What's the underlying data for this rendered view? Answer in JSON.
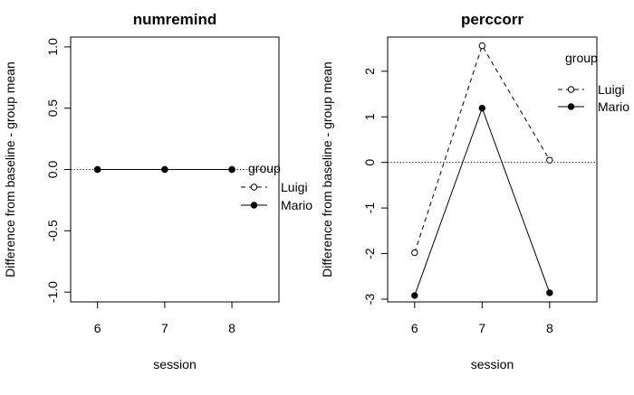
{
  "chart_data": [
    {
      "type": "line",
      "title": "numremind",
      "xlabel": "session",
      "ylabel": "Difference from baseline - group mean",
      "x": [
        6,
        7,
        8
      ],
      "xticks": [
        "6",
        "7",
        "8"
      ],
      "xlim": [
        5.6,
        8.7
      ],
      "ylim": [
        -1.08,
        1.08
      ],
      "yticks": [
        -1.0,
        -0.5,
        0.0,
        0.5,
        1.0
      ],
      "ytick_labels": [
        "-1.0",
        "-0.5",
        "0.0",
        "0.5",
        "1.0"
      ],
      "reference_line": 0,
      "legend": {
        "title": "group",
        "placement": "right"
      },
      "series": [
        {
          "name": "Luigi",
          "values": [
            0,
            0,
            0
          ],
          "linestyle": "dashed",
          "marker": "open-circle"
        },
        {
          "name": "Mario",
          "values": [
            0,
            0,
            0
          ],
          "linestyle": "solid",
          "marker": "filled-circle"
        }
      ]
    },
    {
      "type": "line",
      "title": "perccorr",
      "xlabel": "session",
      "ylabel": "Difference from baseline - group mean",
      "x": [
        6,
        7,
        8
      ],
      "xticks": [
        "6",
        "7",
        "8"
      ],
      "xlim": [
        5.6,
        8.7
      ],
      "ylim": [
        -3.06,
        2.75
      ],
      "yticks": [
        -3,
        -2,
        -1,
        0,
        1,
        2
      ],
      "ytick_labels": [
        "-3",
        "-2",
        "-1",
        "0",
        "1",
        "2"
      ],
      "reference_line": 0,
      "legend": {
        "title": "group",
        "placement": "top-right"
      },
      "series": [
        {
          "name": "Luigi",
          "values": [
            -1.98,
            2.56,
            0.05
          ],
          "linestyle": "dashed",
          "marker": "open-circle"
        },
        {
          "name": "Mario",
          "values": [
            -2.92,
            1.19,
            -2.86
          ],
          "linestyle": "solid",
          "marker": "filled-circle"
        }
      ]
    }
  ]
}
